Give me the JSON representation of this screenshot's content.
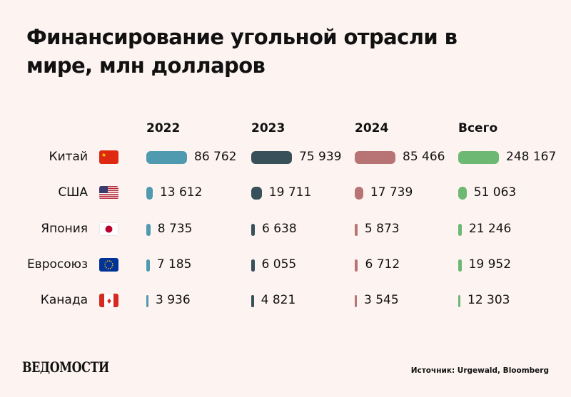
{
  "title": "Финансирование угольной отрасли в мире, млн долларов",
  "source": "Источник: Urgewald, Bloomberg",
  "logo": "ВЕДОМОСТИ",
  "colors": {
    "2022": "#4f9aae",
    "2023": "#37505a",
    "2024": "#b87474",
    "total": "#6db873",
    "background": "#fdf4f1"
  },
  "chart_data": {
    "type": "bar",
    "title": "Финансирование угольной отрасли в мире, млн долларов",
    "columns": [
      "2022",
      "2023",
      "2024",
      "Всего"
    ],
    "categories": [
      "Китай",
      "США",
      "Япония",
      "Евросоюз",
      "Канада"
    ],
    "flags": [
      "china-flag-icon",
      "usa-flag-icon",
      "japan-flag-icon",
      "eu-flag-icon",
      "canada-flag-icon"
    ],
    "series": [
      {
        "name": "2022",
        "values": [
          86762,
          13612,
          8735,
          7185,
          3936
        ],
        "labels": [
          "86 762",
          "13 612",
          "8 735",
          "7 185",
          "3 936"
        ]
      },
      {
        "name": "2023",
        "values": [
          75939,
          19711,
          6638,
          6055,
          4821
        ],
        "labels": [
          "75 939",
          "19 711",
          "6 638",
          "6 055",
          "4 821"
        ]
      },
      {
        "name": "2024",
        "values": [
          85466,
          17739,
          5873,
          6712,
          3545
        ],
        "labels": [
          "85 466",
          "17 739",
          "5 873",
          "6 712",
          "3 545"
        ]
      },
      {
        "name": "Всего",
        "values": [
          248167,
          51063,
          21246,
          19952,
          12303
        ],
        "labels": [
          "248 167",
          "51 063",
          "21 246",
          "19 952",
          "12 303"
        ]
      }
    ]
  }
}
